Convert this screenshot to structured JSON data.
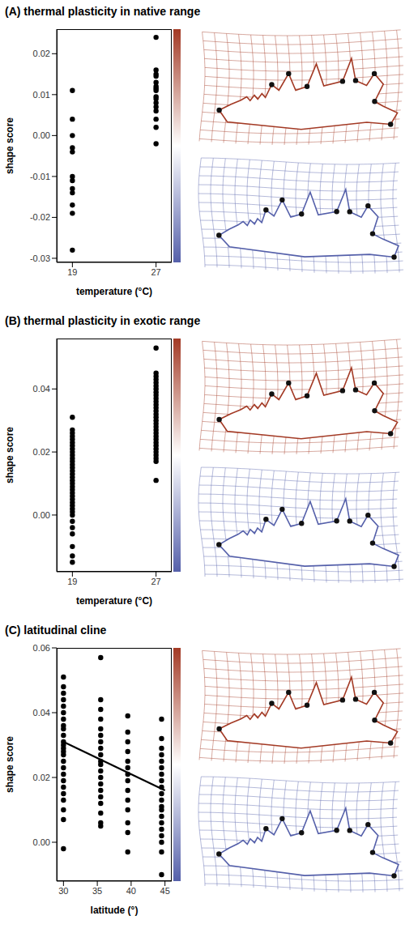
{
  "chart_data": [
    {
      "type": "scatter",
      "title": "(A) thermal plasticity in native range",
      "x_label": "temperature (°C)",
      "y_label": "shape score",
      "color": "#000000",
      "x": [
        19,
        19,
        19,
        19,
        19,
        19,
        19,
        19,
        19,
        19,
        19,
        19,
        27,
        27,
        27,
        27,
        27,
        27,
        27,
        27,
        27,
        27,
        27,
        27,
        27,
        27,
        27,
        27
      ],
      "values": [
        0.011,
        0.004,
        0.0,
        -0.003,
        -0.004,
        -0.01,
        -0.011,
        -0.013,
        -0.014,
        -0.017,
        -0.019,
        -0.028,
        0.024,
        0.016,
        0.015,
        0.0145,
        0.013,
        0.012,
        0.0115,
        0.011,
        0.0095,
        0.009,
        0.008,
        0.007,
        0.006,
        0.004,
        0.002,
        -0.002
      ],
      "xlim": [
        17.5,
        28.5
      ],
      "xticks": [
        19,
        27
      ],
      "ylim": [
        -0.031,
        0.026
      ],
      "yticks": [
        -0.03,
        -0.02,
        -0.01,
        {
          "value": 0,
          "label": "0.00"
        },
        0.01,
        0.02
      ]
    },
    {
      "type": "scatter",
      "title": "(B) thermal plasticity in exotic range",
      "x_label": "temperature (°C)",
      "y_label": "shape score",
      "color": "#000000",
      "x": [
        19,
        19,
        19,
        19,
        19,
        19,
        19,
        19,
        19,
        19,
        19,
        19,
        19,
        19,
        19,
        19,
        19,
        19,
        19,
        19,
        19,
        19,
        19,
        19,
        19,
        19,
        19,
        19,
        19,
        19,
        19,
        19,
        19,
        19,
        19,
        27,
        27,
        27,
        27,
        27,
        27,
        27,
        27,
        27,
        27,
        27,
        27,
        27,
        27,
        27,
        27,
        27,
        27,
        27,
        27,
        27,
        27,
        27,
        27,
        27,
        27,
        27,
        27,
        27,
        27,
        27
      ],
      "values": [
        0.031,
        0.027,
        0.026,
        0.025,
        0.024,
        0.023,
        0.022,
        0.021,
        0.02,
        0.019,
        0.018,
        0.017,
        0.016,
        0.015,
        0.014,
        0.013,
        0.012,
        0.011,
        0.01,
        0.009,
        0.008,
        0.007,
        0.006,
        0.005,
        0.004,
        0.003,
        0.002,
        0.001,
        0.0,
        -0.002,
        -0.004,
        -0.006,
        -0.01,
        -0.013,
        -0.015,
        0.053,
        0.045,
        0.044,
        0.043,
        0.042,
        0.041,
        0.04,
        0.039,
        0.038,
        0.037,
        0.036,
        0.035,
        0.034,
        0.033,
        0.032,
        0.031,
        0.03,
        0.029,
        0.028,
        0.027,
        0.026,
        0.025,
        0.024,
        0.023,
        0.022,
        0.021,
        0.02,
        0.019,
        0.018,
        0.017,
        0.011
      ],
      "xlim": [
        17.5,
        28.5
      ],
      "xticks": [
        19,
        27
      ],
      "ylim": [
        -0.018,
        0.056
      ],
      "yticks": [
        {
          "value": 0,
          "label": "0.00"
        },
        0.02,
        0.04
      ]
    },
    {
      "type": "scatter",
      "title": "(C) latitudinal cline",
      "x_label": "latitude (°)",
      "y_label": "shape score",
      "color": "#000000",
      "x": [
        30,
        30,
        30,
        30,
        30,
        30,
        30,
        30,
        30,
        30,
        30,
        30,
        30,
        30,
        30,
        30,
        30,
        30,
        30,
        30,
        30,
        30,
        30,
        30,
        30,
        35.5,
        35.5,
        35.5,
        35.5,
        35.5,
        35.5,
        35.5,
        35.5,
        35.5,
        35.5,
        35.5,
        35.5,
        35.5,
        35.5,
        35.5,
        35.5,
        35.5,
        35.5,
        35.5,
        35.5,
        39.5,
        39.5,
        39.5,
        39.5,
        39.5,
        39.5,
        39.5,
        39.5,
        39.5,
        39.5,
        39.5,
        39.5,
        39.5,
        39.5,
        44.5,
        44.5,
        44.5,
        44.5,
        44.5,
        44.5,
        44.5,
        44.5,
        44.5,
        44.5,
        44.5,
        44.5,
        44.5,
        44.5,
        44.5,
        44.5,
        44.5,
        44.5,
        44.5,
        44.5
      ],
      "values": [
        0.051,
        0.048,
        0.046,
        0.044,
        0.042,
        0.04,
        0.038,
        0.036,
        0.035,
        0.033,
        0.031,
        0.03,
        0.029,
        0.028,
        0.027,
        0.025,
        0.023,
        0.021,
        0.019,
        0.017,
        0.015,
        0.013,
        0.01,
        0.007,
        -0.002,
        0.057,
        0.044,
        0.041,
        0.038,
        0.035,
        0.033,
        0.031,
        0.029,
        0.027,
        0.025,
        0.024,
        0.022,
        0.02,
        0.018,
        0.016,
        0.014,
        0.012,
        0.009,
        0.006,
        0.005,
        0.039,
        0.034,
        0.031,
        0.028,
        0.025,
        0.023,
        0.021,
        0.019,
        0.016,
        0.013,
        0.01,
        0.006,
        0.003,
        -0.003,
        0.038,
        0.032,
        0.029,
        0.027,
        0.025,
        0.023,
        0.021,
        0.019,
        0.017,
        0.015,
        0.013,
        0.011,
        0.01,
        0.008,
        0.006,
        0.004,
        0.002,
        0.0,
        -0.003,
        -0.01
      ],
      "trend": {
        "x": [
          30,
          45
        ],
        "values": [
          0.031,
          0.016
        ]
      },
      "xlim": [
        29,
        46
      ],
      "xticks": [
        30,
        35,
        40,
        45
      ],
      "ylim": [
        -0.012,
        0.06
      ],
      "yticks": [
        {
          "value": 0,
          "label": "0.00"
        },
        0.02,
        0.04,
        0.06
      ]
    }
  ]
}
